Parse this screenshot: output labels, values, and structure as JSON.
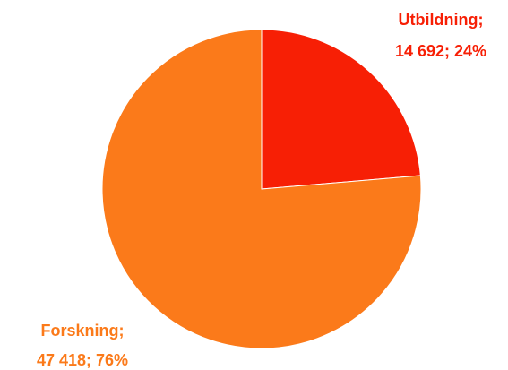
{
  "chart_data": {
    "type": "pie",
    "title": "",
    "slices": [
      {
        "label": "Utbildning;",
        "value": 14692,
        "value_text": "14 692; 24%",
        "percent": 24,
        "color": "#f71f05"
      },
      {
        "label": "Forskning;",
        "value": 47418,
        "value_text": "47 418; 76%",
        "percent": 76,
        "color": "#fb7a1a"
      }
    ],
    "start_angle_deg": 0,
    "direction": "clockwise"
  }
}
